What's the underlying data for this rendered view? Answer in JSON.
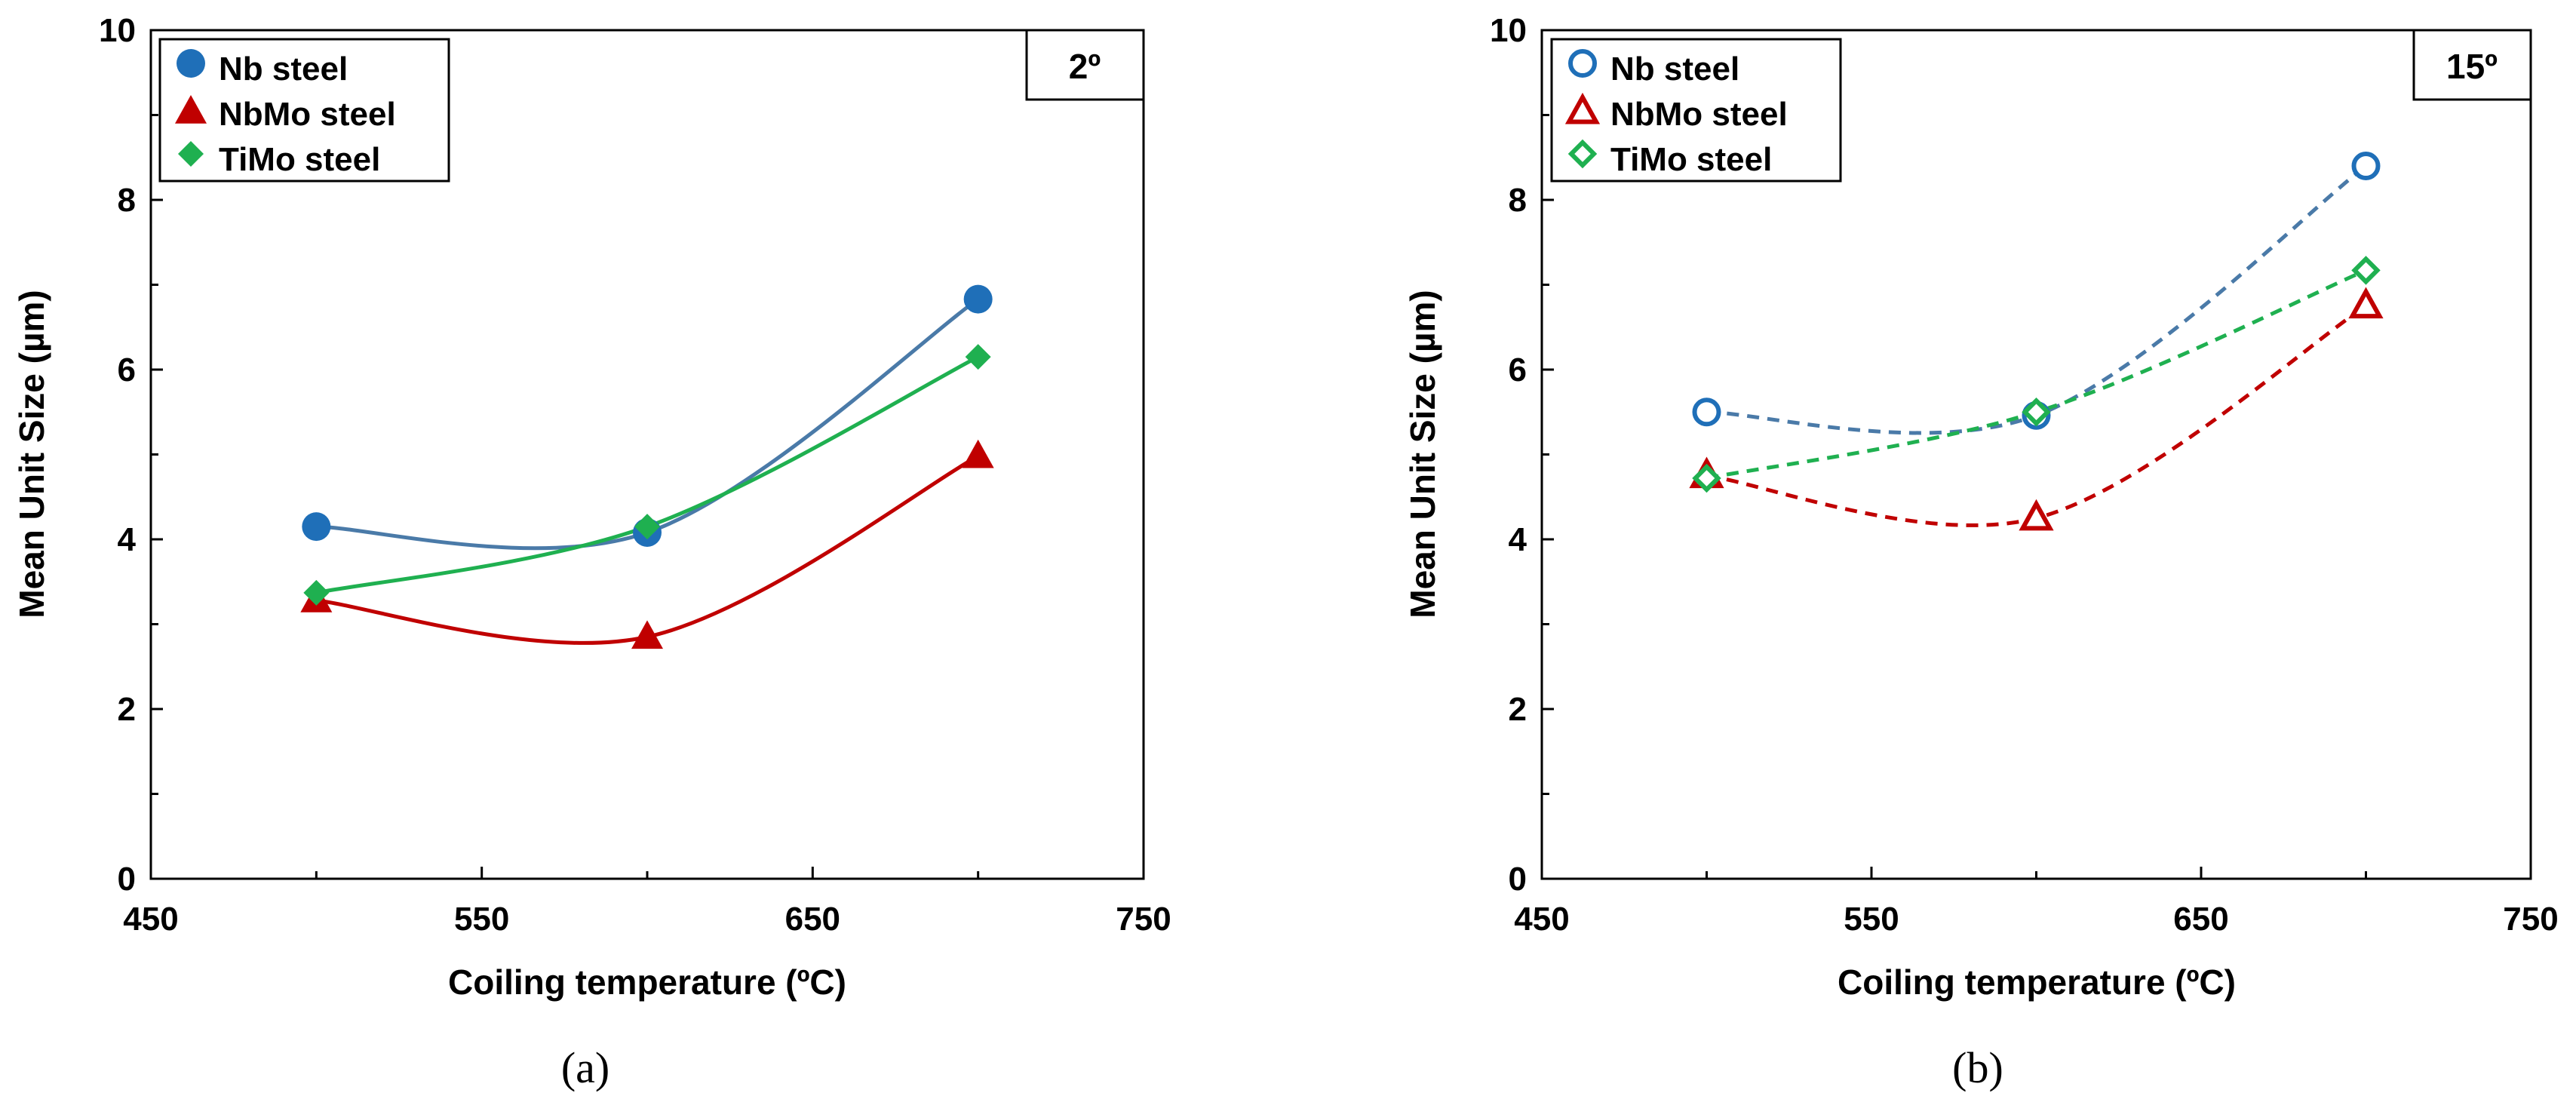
{
  "chart_data": [
    {
      "type": "line",
      "caption": "(a)",
      "angle_label": "2º",
      "xlabel": "Coiling temperature (ºC)",
      "ylabel": "Mean Unit Size (µm)",
      "xlim": [
        450,
        750
      ],
      "ylim": [
        0,
        10
      ],
      "xticks": [
        450,
        550,
        650,
        750
      ],
      "yticks": [
        0,
        2,
        4,
        6,
        8,
        10
      ],
      "legend_position": "top-left",
      "series": [
        {
          "name": "Nb steel",
          "marker": "circle",
          "filled": true,
          "line": "solid",
          "color": "#1f6fb8",
          "line_color": "#4a7aa8",
          "x": [
            500,
            600,
            700
          ],
          "y": [
            4.15,
            4.08,
            6.83
          ]
        },
        {
          "name": "NbMo steel",
          "marker": "triangle",
          "filled": true,
          "line": "solid",
          "color": "#c00000",
          "line_color": "#c00000",
          "x": [
            500,
            600,
            700
          ],
          "y": [
            3.28,
            2.85,
            4.98
          ]
        },
        {
          "name": "TiMo steel",
          "marker": "diamond",
          "filled": true,
          "line": "solid",
          "color": "#1fb050",
          "line_color": "#1fb050",
          "x": [
            500,
            600,
            700
          ],
          "y": [
            3.37,
            4.15,
            6.15
          ]
        }
      ]
    },
    {
      "type": "line",
      "caption": "(b)",
      "angle_label": "15º",
      "xlabel": "Coiling temperature (ºC)",
      "ylabel": "Mean Unit Size (µm)",
      "xlim": [
        450,
        750
      ],
      "ylim": [
        0,
        10
      ],
      "xticks": [
        450,
        550,
        650,
        750
      ],
      "yticks": [
        0,
        2,
        4,
        6,
        8,
        10
      ],
      "legend_position": "top-left",
      "series": [
        {
          "name": "Nb steel",
          "marker": "circle",
          "filled": false,
          "line": "dashed",
          "color": "#1f6fb8",
          "line_color": "#4a7aa8",
          "x": [
            500,
            600,
            700
          ],
          "y": [
            5.5,
            5.46,
            8.4
          ]
        },
        {
          "name": "NbMo steel",
          "marker": "triangle",
          "filled": false,
          "line": "dashed",
          "color": "#c00000",
          "line_color": "#c00000",
          "x": [
            500,
            600,
            700
          ],
          "y": [
            4.75,
            4.25,
            6.75
          ]
        },
        {
          "name": "TiMo steel",
          "marker": "diamond",
          "filled": false,
          "line": "dashed",
          "color": "#1fb050",
          "line_color": "#1fb050",
          "x": [
            500,
            600,
            700
          ],
          "y": [
            4.72,
            5.5,
            7.17
          ]
        }
      ]
    }
  ]
}
